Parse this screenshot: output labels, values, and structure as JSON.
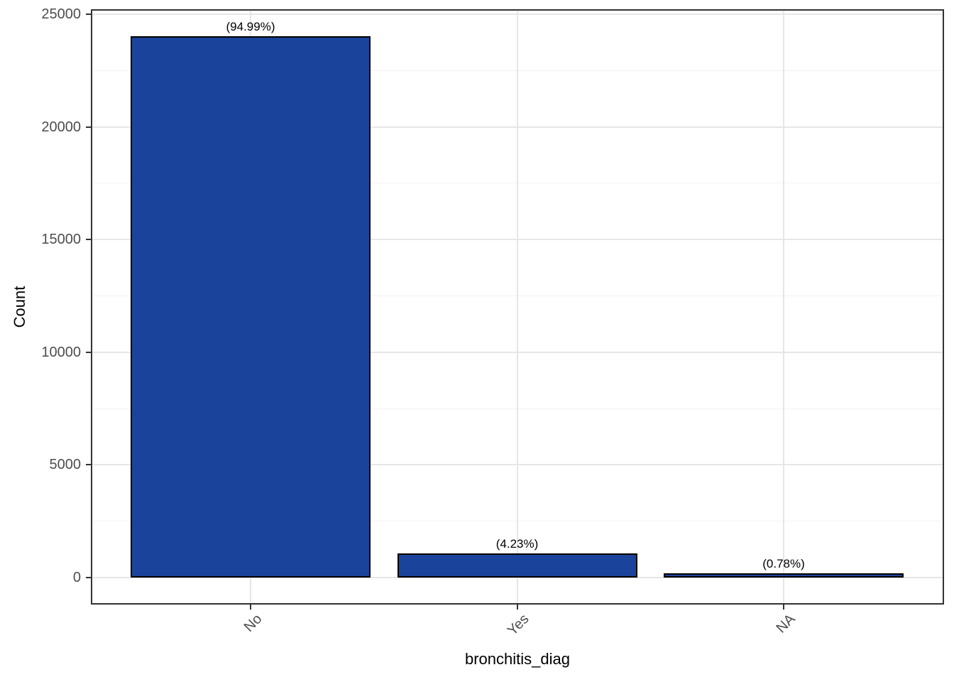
{
  "colors": {
    "bar_fill": "#1a449b",
    "bar_stroke": "#000000",
    "grid_major": "#e6e6e6",
    "grid_minor": "#f2f2f2",
    "panel_border": "#333333",
    "tick_label": "#4d4d4d",
    "axis_title": "#000000",
    "background": "#ffffff"
  },
  "chart_data": {
    "type": "bar",
    "title": "",
    "xlabel": "bronchitis_diag",
    "ylabel": "Count",
    "categories": [
      "No",
      "Yes",
      "NA"
    ],
    "values": [
      24025,
      1070,
      197
    ],
    "bar_labels": [
      "(94.99%)",
      "(4.23%)",
      "(0.78%)"
    ],
    "ylim": [
      0,
      25000
    ],
    "y_major_ticks": [
      0,
      5000,
      10000,
      15000,
      20000,
      25000
    ],
    "y_minor_ticks": [
      2500,
      7500,
      12500,
      17500,
      22500
    ],
    "grid": "on",
    "legend_position": "none",
    "x_tick_angle": 45
  }
}
